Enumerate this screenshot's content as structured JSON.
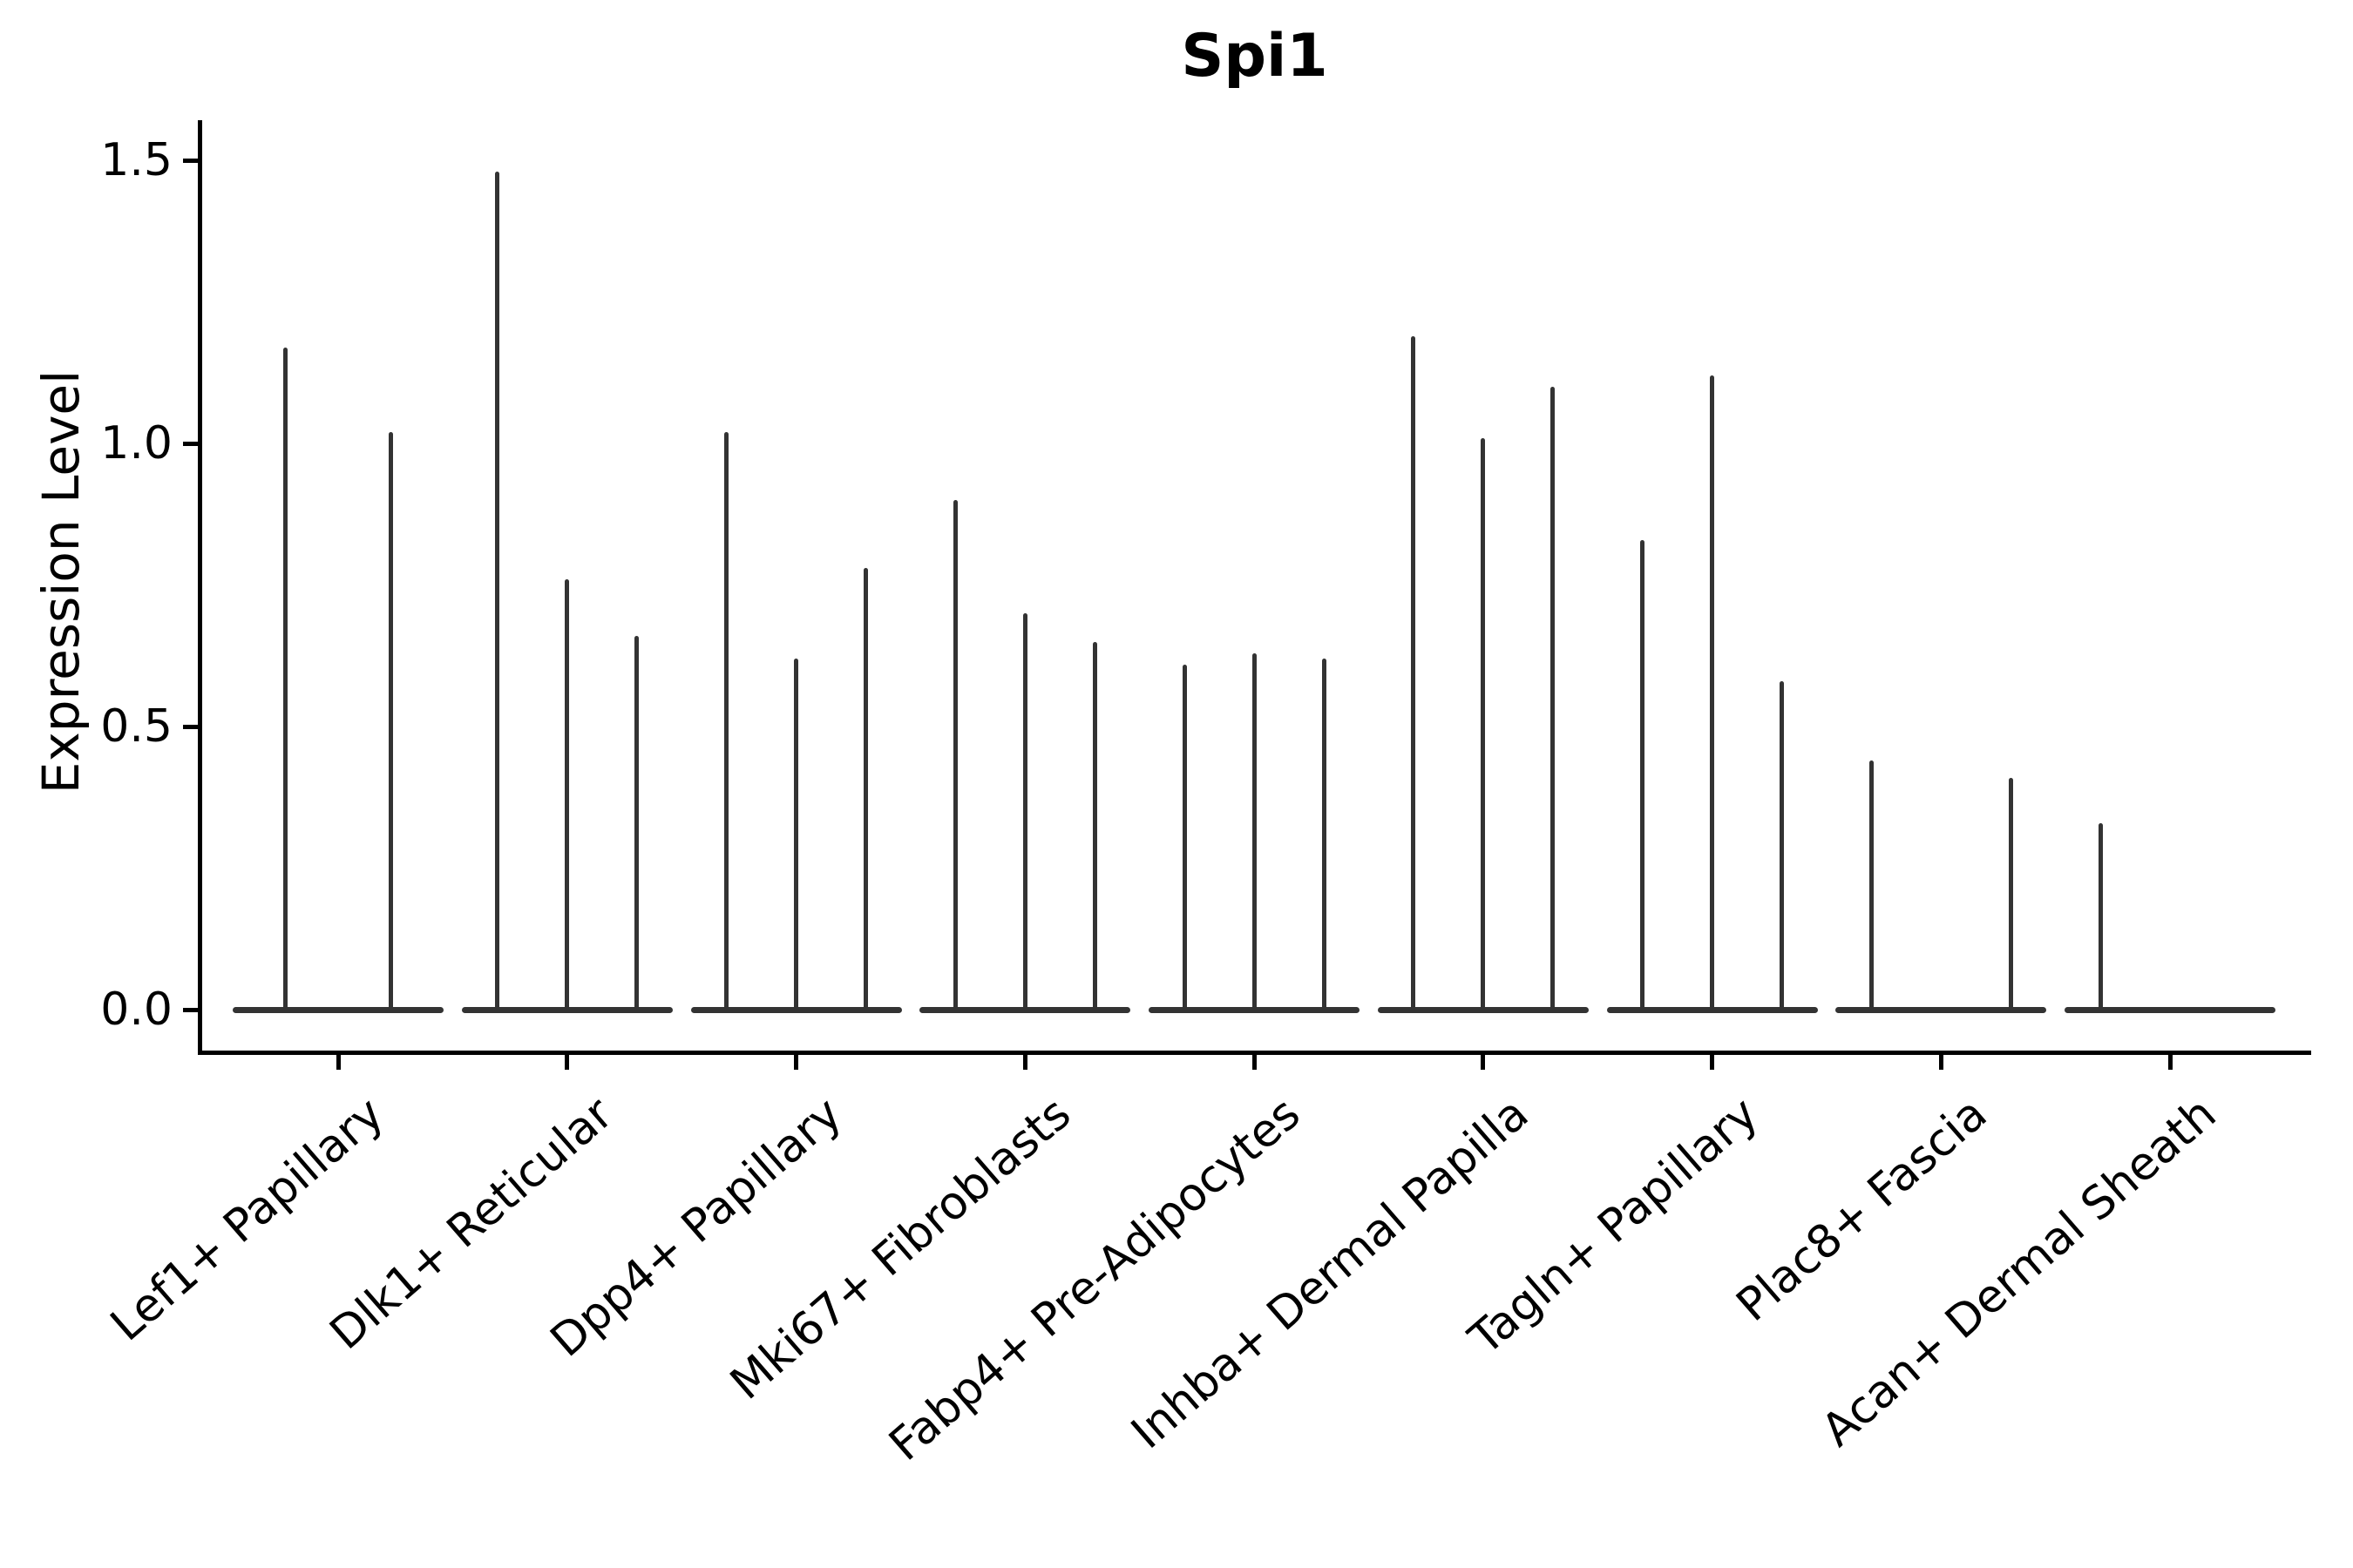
{
  "title": "Spi1",
  "colors": {
    "violin": "#333333",
    "axis": "#000000",
    "text": "#000000",
    "background": "#ffffff"
  },
  "chart_data": {
    "type": "violin",
    "title": "Spi1",
    "xlabel": "",
    "ylabel": "Expression Level",
    "ylim": [
      0,
      1.55
    ],
    "yticks": [
      0.0,
      0.5,
      1.0,
      1.5
    ],
    "ytick_labels": [
      "0.0",
      "0.5",
      "1.0",
      "1.5"
    ],
    "grid": "off",
    "legend": "none",
    "categories": [
      "Lef1+ Papillary",
      "Dlk1+ Reticular",
      "Dpp4+ Papillary",
      "Mki67+ Fibroblasts",
      "Fabp4+ Pre-Adipocytes",
      "Inhba+ Dermal Papilla",
      "Tagln+ Papillary",
      "Plac8+ Fascia",
      "Acan+ Dermal Sheath"
    ],
    "series": [
      {
        "category": "Lef1+ Papillary",
        "violin_max_values": [
          1.17,
          1.02
        ]
      },
      {
        "category": "Dlk1+ Reticular",
        "violin_max_values": [
          1.48,
          0.76,
          0.66
        ]
      },
      {
        "category": "Dpp4+ Papillary",
        "violin_max_values": [
          1.02,
          0.62,
          0.78
        ]
      },
      {
        "category": "Mki67+ Fibroblasts",
        "violin_max_values": [
          0.9,
          0.7,
          0.65
        ]
      },
      {
        "category": "Fabp4+ Pre-Adipocytes",
        "violin_max_values": [
          0.61,
          0.63,
          0.62
        ]
      },
      {
        "category": "Inhba+ Dermal Papilla",
        "violin_max_values": [
          1.19,
          1.01,
          1.1
        ]
      },
      {
        "category": "Tagln+ Papillary",
        "violin_max_values": [
          0.83,
          1.12,
          0.58
        ]
      },
      {
        "category": "Plac8+ Fascia",
        "violin_max_values": [
          0.44,
          0.0,
          0.41
        ]
      },
      {
        "category": "Acan+ Dermal Sheath",
        "violin_max_values": [
          0.33,
          0.0,
          0.0
        ]
      }
    ],
    "note": "Violins are extremely narrow: a wide flat base at expression 0 with a thin vertical spike rising to each group's maximum expression; violins with max 0 are flat lines."
  }
}
